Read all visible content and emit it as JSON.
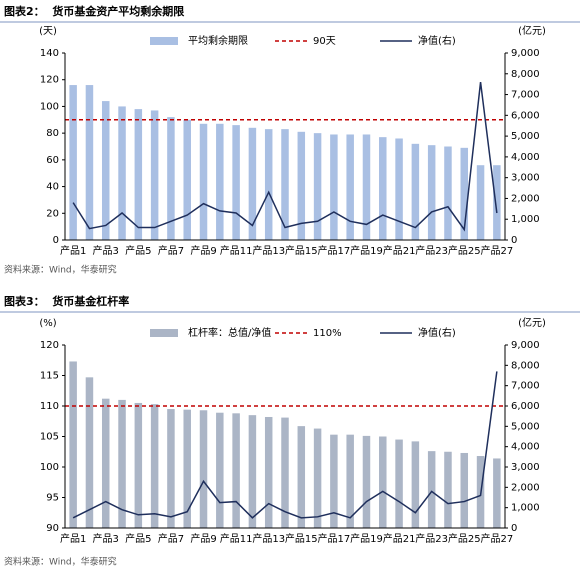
{
  "chart_data": [
    {
      "type": "bar",
      "title": "图表2：  货币基金资产平均剩余期限",
      "ylabel": "(天)",
      "y2label": "(亿元)",
      "categories": [
        "产品1",
        null,
        "产品3",
        null,
        "产品5",
        null,
        "产品7",
        null,
        "产品9",
        null,
        "产品11",
        null,
        "产品13",
        null,
        "产品15",
        null,
        "产品17",
        null,
        "产品19",
        null,
        "产品21",
        null,
        "产品23",
        null,
        "产品25",
        null,
        "产品27"
      ],
      "series": [
        {
          "name": "平均剩余期限",
          "type": "bar",
          "color": "#a9bfe3",
          "values": [
            116,
            116,
            104,
            100,
            98,
            97,
            92,
            90,
            87,
            87,
            86,
            84,
            83,
            83,
            81,
            80,
            79,
            79,
            79,
            77,
            76,
            72,
            71,
            70,
            69,
            56,
            56
          ]
        },
        {
          "name": "净值(右)",
          "type": "line",
          "axis": "y2",
          "color": "#1f2f5c",
          "values": [
            1800,
            550,
            700,
            1300,
            600,
            600,
            900,
            1200,
            1750,
            1400,
            1300,
            700,
            2300,
            600,
            800,
            900,
            1350,
            900,
            750,
            1200,
            900,
            600,
            1350,
            1600,
            500,
            7600,
            1300
          ]
        }
      ],
      "reference_lines": [
        {
          "name": "90天",
          "value": 90,
          "color": "#c00000"
        }
      ],
      "ylim": [
        0,
        140
      ],
      "yticks": [
        0,
        20,
        40,
        60,
        80,
        100,
        120,
        140
      ],
      "y2lim": [
        0,
        9000
      ],
      "y2ticks": [
        0,
        {
          "value": 1000,
          "label": "1,000"
        },
        {
          "value": 2000,
          "label": "2,000"
        },
        {
          "value": 3000,
          "label": "3,000"
        },
        {
          "value": 4000,
          "label": "4,000"
        },
        {
          "value": 5000,
          "label": "5,000"
        },
        {
          "value": 6000,
          "label": "6,000"
        },
        {
          "value": 7000,
          "label": "7,000"
        },
        {
          "value": 8000,
          "label": "8,000"
        },
        {
          "value": 9000,
          "label": "9,000"
        }
      ],
      "note": "资料来源：Wind，华泰研究"
    },
    {
      "type": "bar",
      "title": "图表3：  货币基金杠杆率",
      "ylabel": "(%)",
      "y2label": "(亿元)",
      "categories": [
        "产品1",
        null,
        "产品3",
        null,
        "产品5",
        null,
        "产品7",
        null,
        "产品9",
        null,
        "产品11",
        null,
        "产品13",
        null,
        "产品15",
        null,
        "产品17",
        null,
        "产品19",
        null,
        "产品21",
        null,
        "产品23",
        null,
        "产品25",
        null,
        "产品27"
      ],
      "series": [
        {
          "name": "杠杆率：总值/净值",
          "type": "bar",
          "color": "#abb5c6",
          "values": [
            117.3,
            114.7,
            111.2,
            111,
            110.5,
            110.3,
            109.5,
            109.4,
            109.3,
            108.9,
            108.8,
            108.5,
            108.2,
            108.1,
            106.7,
            106.3,
            105.3,
            105.3,
            105.1,
            105,
            104.5,
            104.2,
            102.6,
            102.5,
            102.3,
            101.8,
            101.4
          ]
        },
        {
          "name": "净值(右)",
          "type": "line",
          "axis": "y2",
          "color": "#1f2f5c",
          "values": [
            500,
            900,
            1300,
            900,
            650,
            700,
            550,
            800,
            2300,
            1250,
            1300,
            500,
            1200,
            800,
            500,
            550,
            750,
            500,
            1300,
            1800,
            1300,
            750,
            1800,
            1200,
            1300,
            1600,
            7700
          ]
        }
      ],
      "reference_lines": [
        {
          "name": "110%",
          "value": 110,
          "color": "#c00000"
        }
      ],
      "ylim": [
        90,
        120
      ],
      "yticks": [
        90,
        95,
        100,
        105,
        110,
        115,
        120
      ],
      "y2lim": [
        0,
        9000
      ],
      "y2ticks": [
        0,
        {
          "value": 1000,
          "label": "1,000"
        },
        {
          "value": 2000,
          "label": "2,000"
        },
        {
          "value": 3000,
          "label": "3,000"
        },
        {
          "value": 4000,
          "label": "4,000"
        },
        {
          "value": 5000,
          "label": "5,000"
        },
        {
          "value": 6000,
          "label": "6,000"
        },
        {
          "value": 7000,
          "label": "7,000"
        },
        {
          "value": 8000,
          "label": "8,000"
        },
        {
          "value": 9000,
          "label": "9,000"
        }
      ],
      "note": "资料来源：Wind，华泰研究"
    }
  ]
}
